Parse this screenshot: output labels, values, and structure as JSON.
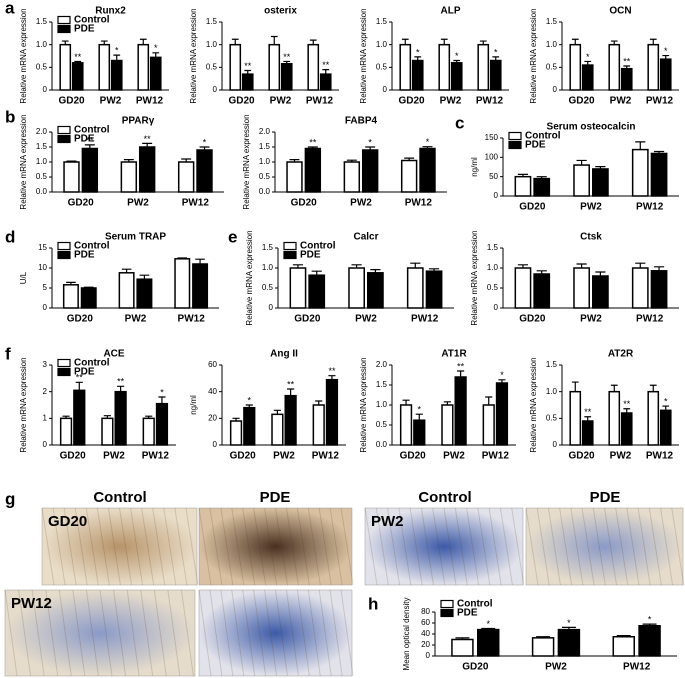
{
  "chart_data": [
    {
      "type": "bar",
      "title": "Runx2",
      "ylabel": "Relative mRNA expression",
      "categories": [
        "GD20",
        "PW2",
        "PW12"
      ],
      "ylim": [
        0,
        1.5
      ],
      "yticks": [
        0,
        0.5,
        {
          "value": 1,
          "label": "1.0"
        },
        1.5
      ],
      "series": [
        {
          "name": "Control",
          "color": "#ffffff",
          "values": [
            1,
            1,
            1
          ],
          "errors": [
            0.08,
            0.08,
            0.12
          ]
        },
        {
          "name": "PDE",
          "color": "#000000",
          "values": [
            0.6,
            0.65,
            0.72
          ],
          "errors": [
            0.03,
            0.12,
            0.1
          ],
          "significance": [
            "**",
            "*",
            "*"
          ]
        }
      ]
    },
    {
      "type": "bar",
      "title": "osterix",
      "ylabel": "Relative mRNA expression",
      "categories": [
        "GD20",
        "PW2",
        "PW12"
      ],
      "ylim": [
        0,
        1.5
      ],
      "yticks": [
        0,
        0.5,
        {
          "value": 1,
          "label": "1.0"
        },
        1.5
      ],
      "series": [
        {
          "color": "#ffffff",
          "values": [
            1,
            1,
            1
          ],
          "errors": [
            0.12,
            0.18,
            0.1
          ]
        },
        {
          "color": "#000000",
          "values": [
            0.35,
            0.58,
            0.35
          ],
          "errors": [
            0.08,
            0.05,
            0.1
          ],
          "significance": [
            "**",
            "**",
            "**"
          ]
        }
      ]
    },
    {
      "type": "bar",
      "title": "ALP",
      "ylabel": "Relative mRNA expression",
      "categories": [
        "GD20",
        "PW2",
        "PW12"
      ],
      "ylim": [
        0,
        1.5
      ],
      "yticks": [
        0,
        0.5,
        {
          "value": 1,
          "label": "1.0"
        },
        1.5
      ],
      "series": [
        {
          "color": "#ffffff",
          "values": [
            1,
            1,
            1
          ],
          "errors": [
            0.12,
            0.12,
            0.08
          ]
        },
        {
          "color": "#000000",
          "values": [
            0.65,
            0.6,
            0.65
          ],
          "errors": [
            0.08,
            0.05,
            0.08
          ],
          "significance": [
            "*",
            "*",
            "*"
          ]
        }
      ]
    },
    {
      "type": "bar",
      "title": "OCN",
      "ylabel": "Relative mRNA expression",
      "categories": [
        "GD20",
        "PW2",
        "PW12"
      ],
      "ylim": [
        0,
        1.5
      ],
      "yticks": [
        0,
        0.5,
        {
          "value": 1,
          "label": "1.0"
        },
        1.5
      ],
      "series": [
        {
          "color": "#ffffff",
          "values": [
            1,
            1,
            1
          ],
          "errors": [
            0.12,
            0.08,
            0.12
          ]
        },
        {
          "color": "#000000",
          "values": [
            0.55,
            0.47,
            0.68
          ],
          "errors": [
            0.08,
            0.06,
            0.08
          ],
          "significance": [
            "*",
            "**",
            "*"
          ]
        }
      ]
    },
    {
      "type": "bar",
      "title": "PPARγ",
      "ylabel": "Relative mRNA expression",
      "categories": [
        "GD20",
        "PW2",
        "PW12"
      ],
      "ylim": [
        0,
        2
      ],
      "yticks": [
        {
          "value": 0,
          "label": "0.0"
        },
        0.5,
        {
          "value": 1,
          "label": "1.0"
        },
        1.5,
        {
          "value": 2,
          "label": "2.0"
        }
      ],
      "series": [
        {
          "name": "Control",
          "color": "#ffffff",
          "values": [
            1,
            1,
            1
          ],
          "errors": [
            0.03,
            0.08,
            0.1
          ]
        },
        {
          "name": "PDE",
          "color": "#000000",
          "values": [
            1.45,
            1.5,
            1.4
          ],
          "errors": [
            0.12,
            0.12,
            0.1
          ],
          "significance": [
            "**",
            "**",
            "*"
          ]
        }
      ]
    },
    {
      "type": "bar",
      "title": "FABP4",
      "ylabel": "Relative mRNA expression",
      "categories": [
        "GD20",
        "PW2",
        "PW12"
      ],
      "ylim": [
        0,
        2
      ],
      "yticks": [
        {
          "value": 0,
          "label": "0.0"
        },
        0.5,
        {
          "value": 1,
          "label": "1.0"
        },
        1.5,
        {
          "value": 2,
          "label": "2.0"
        }
      ],
      "series": [
        {
          "color": "#ffffff",
          "values": [
            1,
            1,
            1.05
          ],
          "errors": [
            0.08,
            0.06,
            0.08
          ]
        },
        {
          "color": "#000000",
          "values": [
            1.45,
            1.4,
            1.45
          ],
          "errors": [
            0.05,
            0.1,
            0.06
          ],
          "significance": [
            "**",
            "*",
            "*"
          ]
        }
      ]
    },
    {
      "type": "bar",
      "title": "Serum osteocalcin",
      "ylabel": "ng/ml",
      "categories": [
        "GD20",
        "PW2",
        "PW12"
      ],
      "ylim": [
        0,
        150
      ],
      "yticks": [
        0,
        50,
        100,
        150
      ],
      "series": [
        {
          "name": "Control",
          "color": "#ffffff",
          "values": [
            50,
            80,
            120
          ],
          "errors": [
            6,
            12,
            20
          ]
        },
        {
          "name": "PDE",
          "color": "#000000",
          "values": [
            45,
            70,
            110
          ],
          "errors": [
            5,
            6,
            5
          ]
        }
      ]
    },
    {
      "type": "bar",
      "title": "Serum TRAP",
      "ylabel": "U/L",
      "categories": [
        "GD20",
        "PW2",
        "PW12"
      ],
      "ylim": [
        0,
        15
      ],
      "yticks": [
        0,
        5,
        10,
        15
      ],
      "series": [
        {
          "name": "Control",
          "color": "#ffffff",
          "values": [
            5.8,
            8.8,
            12.3
          ],
          "errors": [
            0.6,
            0.9,
            0.2
          ]
        },
        {
          "name": "PDE",
          "color": "#000000",
          "values": [
            5,
            7.2,
            11
          ],
          "errors": [
            0.2,
            1,
            1.2
          ]
        }
      ]
    },
    {
      "type": "bar",
      "title": "Calcr",
      "ylabel": "Relative mRNA expression",
      "categories": [
        "GD20",
        "PW2",
        "PW12"
      ],
      "ylim": [
        0,
        1.5
      ],
      "yticks": [
        0,
        0.5,
        {
          "value": 1,
          "label": "1.0"
        },
        1.5
      ],
      "series": [
        {
          "name": "Control",
          "color": "#ffffff",
          "values": [
            1,
            1,
            1
          ],
          "errors": [
            0.08,
            0.08,
            0.12
          ]
        },
        {
          "name": "PDE",
          "color": "#000000",
          "values": [
            0.82,
            0.88,
            0.92
          ],
          "errors": [
            0.1,
            0.08,
            0.06
          ]
        }
      ]
    },
    {
      "type": "bar",
      "title": "Ctsk",
      "ylabel": "Relative mRNA expression",
      "categories": [
        "GD20",
        "PW2",
        "PW12"
      ],
      "ylim": [
        0,
        1.5
      ],
      "yticks": [
        0,
        0.5,
        {
          "value": 1,
          "label": "1.0"
        },
        1.5
      ],
      "series": [
        {
          "color": "#ffffff",
          "values": [
            1,
            1,
            1
          ],
          "errors": [
            0.08,
            0.1,
            0.12
          ]
        },
        {
          "color": "#000000",
          "values": [
            0.85,
            0.8,
            0.93
          ],
          "errors": [
            0.08,
            0.1,
            0.1
          ]
        }
      ]
    },
    {
      "type": "bar",
      "title": "ACE",
      "ylabel": "Relative mRNA expression",
      "categories": [
        "GD20",
        "PW2",
        "PW12"
      ],
      "ylim": [
        0,
        3
      ],
      "yticks": [
        0,
        1,
        2,
        3
      ],
      "series": [
        {
          "name": "Control",
          "color": "#ffffff",
          "values": [
            1,
            1,
            1
          ],
          "errors": [
            0.08,
            0.1,
            0.08
          ]
        },
        {
          "name": "PDE",
          "color": "#000000",
          "values": [
            2.05,
            2,
            1.55
          ],
          "errors": [
            0.3,
            0.2,
            0.25
          ],
          "significance": [
            "**",
            "**",
            "*"
          ]
        }
      ]
    },
    {
      "type": "bar",
      "title": "Ang II",
      "ylabel": "ng/ml",
      "categories": [
        "GD20",
        "PW2",
        "PW12"
      ],
      "ylim": [
        0,
        60
      ],
      "yticks": [
        0,
        20,
        40,
        60
      ],
      "series": [
        {
          "color": "#ffffff",
          "values": [
            18,
            23,
            30
          ],
          "errors": [
            2,
            3,
            3
          ]
        },
        {
          "color": "#000000",
          "values": [
            28,
            37,
            49
          ],
          "errors": [
            2,
            5,
            3
          ],
          "significance": [
            "*",
            "**",
            "**"
          ]
        }
      ]
    },
    {
      "type": "bar",
      "title": "AT1R",
      "ylabel": "Relative mRNA expression",
      "categories": [
        "GD20",
        "PW2",
        "PW12"
      ],
      "ylim": [
        0,
        2
      ],
      "yticks": [
        {
          "value": 0,
          "label": "0.0"
        },
        0.5,
        {
          "value": 1,
          "label": "1.0"
        },
        1.5,
        {
          "value": 2,
          "label": "2.0"
        }
      ],
      "series": [
        {
          "color": "#ffffff",
          "values": [
            1,
            1,
            1
          ],
          "errors": [
            0.12,
            0.08,
            0.2
          ]
        },
        {
          "color": "#000000",
          "values": [
            0.62,
            1.7,
            1.55
          ],
          "errors": [
            0.15,
            0.15,
            0.08
          ],
          "significance": [
            "*",
            "**",
            "*"
          ]
        }
      ]
    },
    {
      "type": "bar",
      "title": "AT2R",
      "ylabel": "Relative mRNA expression",
      "categories": [
        "GD20",
        "PW2",
        "PW12"
      ],
      "ylim": [
        0,
        1.5
      ],
      "yticks": [
        0,
        0.5,
        {
          "value": 1,
          "label": "1.0"
        },
        1.5
      ],
      "series": [
        {
          "color": "#ffffff",
          "values": [
            1,
            1,
            1
          ],
          "errors": [
            0.18,
            0.12,
            0.12
          ]
        },
        {
          "color": "#000000",
          "values": [
            0.45,
            0.6,
            0.65
          ],
          "errors": [
            0.08,
            0.08,
            0.08
          ],
          "significance": [
            "**",
            "**",
            "*"
          ]
        }
      ]
    },
    {
      "type": "bar",
      "ylabel": "Mean optical density",
      "categories": [
        "GD20",
        "PW2",
        "PW12"
      ],
      "ylim": [
        0,
        80
      ],
      "yticks": [
        0,
        20,
        40,
        60,
        80
      ],
      "series": [
        {
          "name": "Control",
          "color": "#ffffff",
          "values": [
            30,
            33,
            35
          ],
          "errors": [
            3,
            2,
            2
          ]
        },
        {
          "name": "PDE",
          "color": "#000000",
          "values": [
            48,
            48,
            55
          ],
          "errors": [
            2,
            4,
            3
          ],
          "significance": [
            "*",
            "*",
            "*"
          ]
        }
      ]
    }
  ],
  "panel_letters": [
    "a",
    "b",
    "c",
    "d",
    "e",
    "f",
    "g",
    "h"
  ],
  "histology": {
    "headers": [
      "Control",
      "PDE",
      "Control",
      "PDE"
    ],
    "labels": [
      "GD20",
      "PW2",
      "PW12"
    ]
  }
}
